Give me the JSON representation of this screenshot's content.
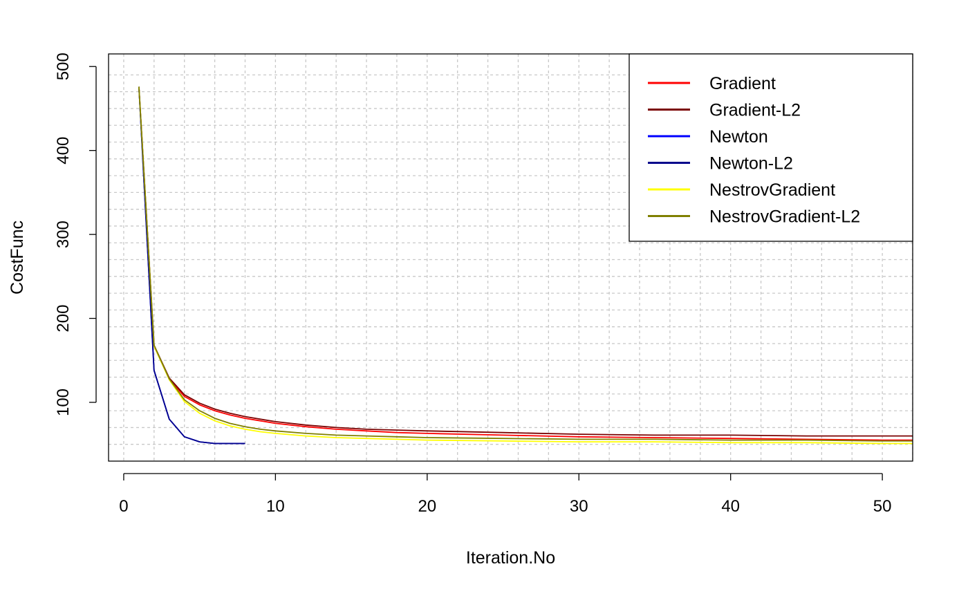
{
  "chart_data": {
    "type": "line",
    "title": "",
    "xlabel": "Iteration.No",
    "ylabel": "CostFunc",
    "xlim": [
      -1,
      52
    ],
    "ylim": [
      30,
      515
    ],
    "xticks": [
      0,
      10,
      20,
      30,
      40,
      50
    ],
    "yticks": [
      100,
      200,
      300,
      400,
      500
    ],
    "grid": true,
    "legend_position": "top-right",
    "series": [
      {
        "name": "Gradient",
        "color": "#ff0000",
        "x": [
          1,
          2,
          3,
          4,
          5,
          6,
          7,
          8,
          9,
          10,
          12,
          14,
          16,
          18,
          20,
          25,
          30,
          35,
          40,
          45,
          50,
          52
        ],
        "y": [
          476,
          167,
          128,
          107,
          97,
          90,
          85,
          81,
          78,
          75,
          71,
          68,
          66,
          64,
          63,
          61,
          59,
          58,
          57,
          56,
          55,
          55
        ]
      },
      {
        "name": "Gradient-L2",
        "color": "#7a0000",
        "x": [
          1,
          2,
          3,
          4,
          5,
          6,
          7,
          8,
          9,
          10,
          12,
          14,
          16,
          18,
          20,
          25,
          30,
          35,
          40,
          45,
          50,
          52
        ],
        "y": [
          476,
          168,
          129,
          109,
          99,
          92,
          87,
          83,
          80,
          77,
          73,
          70,
          68,
          67,
          66,
          64,
          62,
          61,
          61,
          60,
          60,
          60
        ]
      },
      {
        "name": "Newton",
        "color": "#0000ff",
        "x": [
          1,
          2,
          3,
          4,
          5,
          6,
          7,
          8
        ],
        "y": [
          476,
          138,
          80,
          59,
          53,
          51,
          51,
          51
        ]
      },
      {
        "name": "Newton-L2",
        "color": "#00008b",
        "x": [
          1,
          2,
          3,
          4,
          5,
          6,
          7,
          8
        ],
        "y": [
          476,
          138,
          80,
          59,
          53,
          51,
          51,
          51
        ]
      },
      {
        "name": "NestrovGradient",
        "color": "#ffff00",
        "x": [
          1,
          2,
          3,
          4,
          5,
          6,
          7,
          8,
          9,
          10,
          12,
          14,
          16,
          18,
          20,
          25,
          30,
          35,
          40,
          45,
          50,
          52
        ],
        "y": [
          476,
          167,
          127,
          101,
          87,
          78,
          72,
          68,
          65,
          63,
          60,
          58,
          57,
          56,
          55,
          54,
          53,
          53,
          52,
          52,
          51,
          51
        ]
      },
      {
        "name": "NestrovGradient-L2",
        "color": "#808000",
        "x": [
          1,
          2,
          3,
          4,
          5,
          6,
          7,
          8,
          9,
          10,
          12,
          14,
          16,
          18,
          20,
          25,
          30,
          35,
          40,
          45,
          50,
          52
        ],
        "y": [
          476,
          168,
          128,
          103,
          90,
          81,
          75,
          71,
          68,
          66,
          63,
          61,
          60,
          59,
          58,
          57,
          56,
          56,
          55,
          55,
          54,
          54
        ]
      }
    ]
  }
}
